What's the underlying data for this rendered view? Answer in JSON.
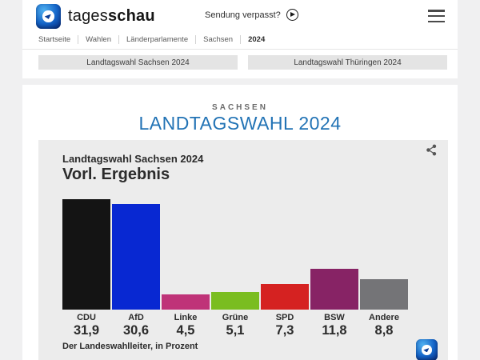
{
  "colors": {
    "page_bg": "#f0f0f1",
    "card_bg": "#ffffff",
    "panel_bg": "#ececec",
    "title_blue": "#2273b5",
    "button_bg": "#e4e4e4",
    "text_dark": "#2b2b2b",
    "breadcrumb_gray": "#5a5a5a"
  },
  "icons": {
    "app": "tagesschau-app-icon (blue globe with ARD eye)",
    "play": "play-circle-icon",
    "menu": "hamburger-menu-icon",
    "share": "share-icon",
    "ard_small": "ard-logo-icon"
  },
  "header": {
    "brand": {
      "regular": "tages",
      "bold": "schau"
    },
    "sendung_verpasst_label": "Sendung verpasst?",
    "breadcrumb": [
      "Startseite",
      "Wahlen",
      "Länderparlamente",
      "Sachsen",
      "2024"
    ]
  },
  "nav_buttons": [
    {
      "label": "Landtagswahl Sachsen 2024"
    },
    {
      "label": "Landtagswahl Thüringen 2024"
    }
  ],
  "page": {
    "kicker": "SACHSEN",
    "title": "LANDTAGSWAHL 2024"
  },
  "chart": {
    "subtitle": "Landtagswahl Sachsen 2024",
    "title": "Vorl. Ergebnis",
    "source": "Der Landeswahlleiter, in Prozent"
  },
  "chart_data": {
    "type": "bar",
    "title": "Vorl. Ergebnis",
    "subtitle": "Landtagswahl Sachsen 2024",
    "categories": [
      "CDU",
      "AfD",
      "Linke",
      "Grüne",
      "SPD",
      "BSW",
      "Andere"
    ],
    "values": [
      31.9,
      30.6,
      4.5,
      5.1,
      7.3,
      11.8,
      8.8
    ],
    "value_labels": [
      "31,9",
      "30,6",
      "4,5",
      "5,1",
      "7,3",
      "11,8",
      "8,8"
    ],
    "colors": [
      "#141414",
      "#0828d2",
      "#bf3378",
      "#7abd20",
      "#d52221",
      "#872365",
      "#747477"
    ],
    "unit": "Prozent",
    "source": "Der Landeswahlleiter, in Prozent",
    "ylim": [
      0,
      32
    ],
    "grid": false,
    "legend": "none"
  }
}
